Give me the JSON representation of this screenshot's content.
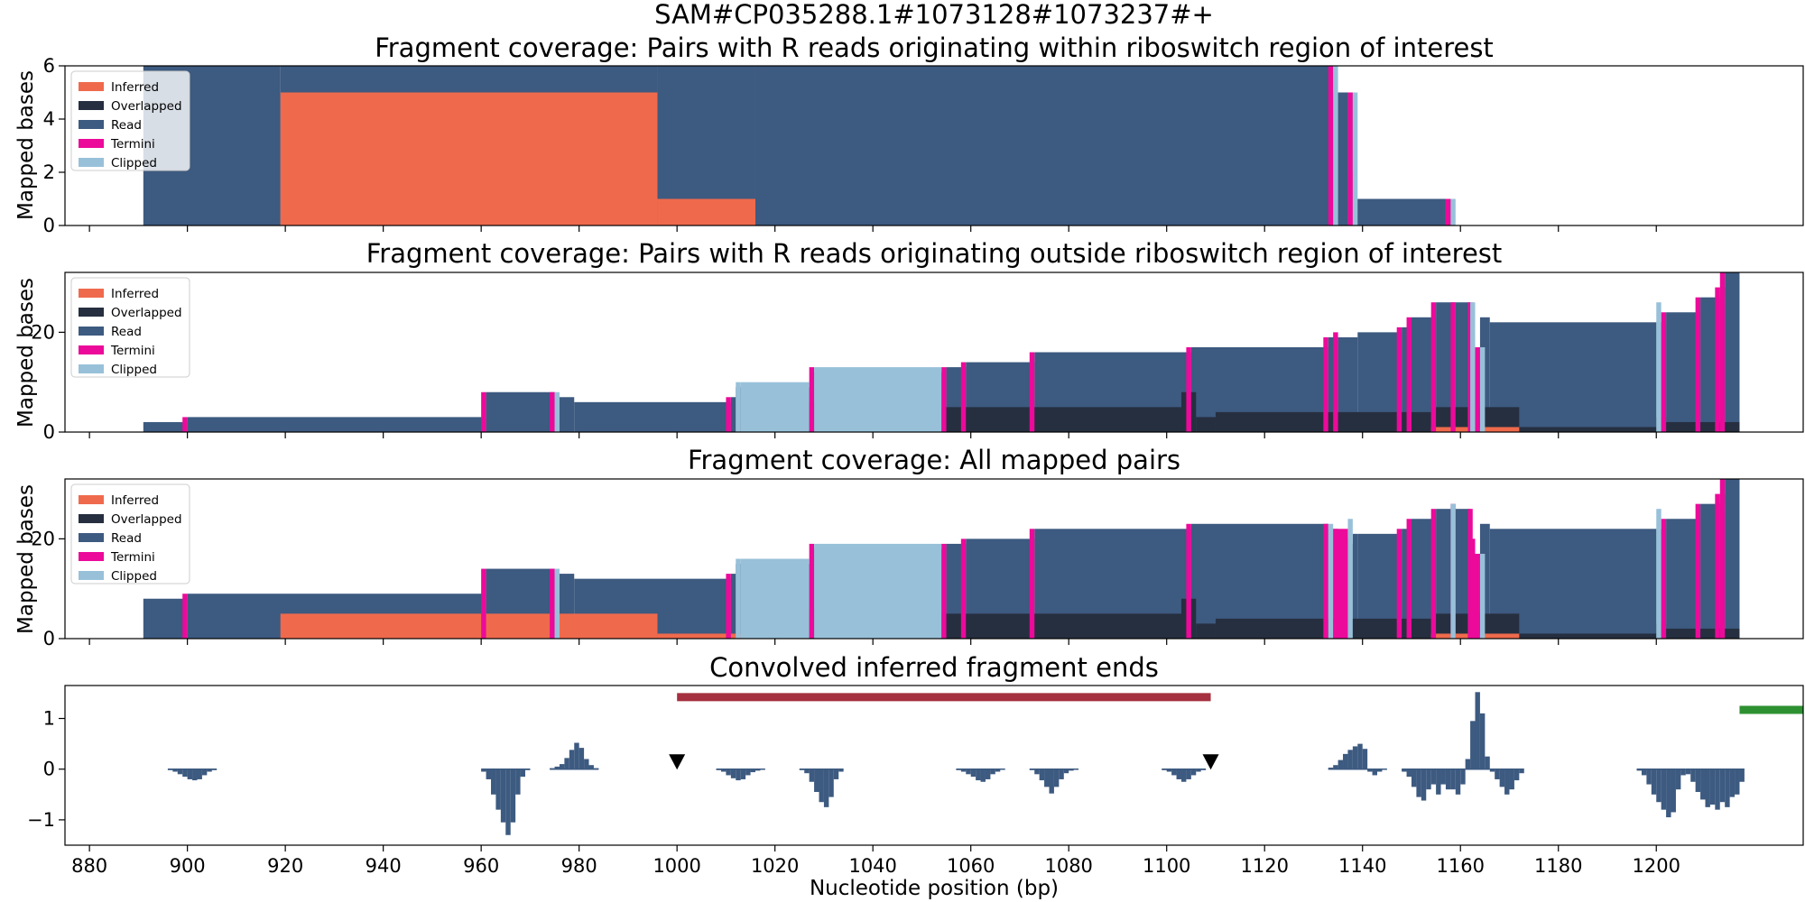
{
  "suptitle": "SAM#CP035288.1#1073128#1073237#+",
  "colors": {
    "Inferred": "#ef6a4c",
    "Overlapped": "#262f40",
    "Read": "#3d5a80",
    "Termini": "#ec0a9a",
    "Clipped": "#98c1d9",
    "bar_neg": "#3d5a80",
    "riboswitch": "#a5303f",
    "downstream": "#2e9131",
    "marker": "#000000"
  },
  "legend_labels": [
    "Inferred",
    "Overlapped",
    "Read",
    "Termini",
    "Clipped"
  ],
  "chart_data": [
    {
      "type": "area",
      "title": "Fragment coverage: Pairs with R reads originating within riboswitch region of interest",
      "ylabel": "Mapped bases",
      "xlim": [
        875,
        1230
      ],
      "ylim": [
        0,
        6
      ],
      "yticks": [
        0,
        2,
        4,
        6
      ],
      "legend": "top-left",
      "layers": {
        "Inferred": [
          [
            919,
            996,
            5
          ],
          [
            996,
            1016,
            1
          ]
        ],
        "Overlapped": [],
        "Read": [
          [
            891,
            919,
            6
          ],
          [
            919,
            996,
            6
          ],
          [
            996,
            1016,
            6
          ],
          [
            1016,
            1134,
            6
          ],
          [
            1134,
            1137,
            5
          ],
          [
            1137,
            1138,
            5
          ],
          [
            1138,
            1138.6,
            2
          ],
          [
            1138.6,
            1157,
            1
          ],
          [
            1157,
            1158,
            1
          ]
        ],
        "Termini": [
          [
            1133,
            1134,
            6
          ],
          [
            1137,
            1138,
            5
          ],
          [
            1137.6,
            1138.6,
            2
          ],
          [
            1157,
            1158,
            1
          ]
        ],
        "Clipped": [
          [
            1134,
            1135,
            6
          ],
          [
            1138,
            1139,
            5
          ],
          [
            1158,
            1159,
            1
          ]
        ]
      }
    },
    {
      "type": "area",
      "title": "Fragment coverage: Pairs with R reads originating outside riboswitch region of interest",
      "ylabel": "Mapped bases",
      "xlim": [
        875,
        1230
      ],
      "ylim": [
        0,
        32
      ],
      "yticks": [
        0,
        20
      ],
      "legend": "top-left",
      "layers": {
        "Inferred": [
          [
            1154,
            1172,
            1
          ]
        ],
        "Overlapped": [
          [
            1022,
            1042,
            6
          ],
          [
            1042,
            1103,
            5
          ],
          [
            1103,
            1106,
            8
          ],
          [
            1106,
            1110,
            3
          ],
          [
            1110,
            1154,
            4
          ],
          [
            1154,
            1172,
            5
          ],
          [
            1172,
            1200,
            1
          ],
          [
            1200,
            1202,
            3
          ],
          [
            1202,
            1217,
            2
          ]
        ],
        "Read": [
          [
            891,
            900,
            2
          ],
          [
            900,
            961,
            3
          ],
          [
            961,
            975,
            8
          ],
          [
            975,
            979,
            7
          ],
          [
            979,
            1011,
            6
          ],
          [
            1011,
            1012,
            7
          ],
          [
            1012,
            1028,
            9
          ],
          [
            1028,
            1055,
            12
          ],
          [
            1055,
            1059,
            13
          ],
          [
            1059,
            1073,
            14
          ],
          [
            1073,
            1105,
            16
          ],
          [
            1105,
            1133,
            17
          ],
          [
            1133,
            1135,
            19
          ],
          [
            1135,
            1139,
            19
          ],
          [
            1139,
            1148,
            20
          ],
          [
            1148,
            1150,
            21
          ],
          [
            1150,
            1155,
            23
          ],
          [
            1155,
            1159,
            26
          ],
          [
            1159,
            1162,
            26
          ],
          [
            1162,
            1163,
            20
          ],
          [
            1163,
            1164,
            17
          ],
          [
            1164,
            1166,
            23
          ],
          [
            1166,
            1200,
            22
          ],
          [
            1200,
            1202,
            22
          ],
          [
            1202,
            1209,
            24
          ],
          [
            1209,
            1213,
            27
          ],
          [
            1213,
            1214,
            29
          ],
          [
            1214,
            1217,
            32
          ]
        ],
        "Termini": [
          [
            899,
            900,
            3
          ],
          [
            960,
            961,
            8
          ],
          [
            974,
            975,
            8
          ],
          [
            1010,
            1011,
            7
          ],
          [
            1027,
            1028,
            13
          ],
          [
            1054,
            1055,
            13
          ],
          [
            1058,
            1059,
            14
          ],
          [
            1072,
            1073,
            16
          ],
          [
            1104,
            1105,
            17
          ],
          [
            1132,
            1133,
            19
          ],
          [
            1134,
            1135,
            20
          ],
          [
            1147,
            1148,
            21
          ],
          [
            1149,
            1150,
            23
          ],
          [
            1154,
            1155,
            26
          ],
          [
            1158,
            1159,
            26
          ],
          [
            1161.5,
            1162.5,
            26
          ],
          [
            1162,
            1163,
            20
          ],
          [
            1163,
            1164,
            17
          ],
          [
            1201,
            1202,
            24
          ],
          [
            1208,
            1209,
            27
          ],
          [
            1212,
            1213,
            29
          ],
          [
            1213,
            1214,
            32
          ]
        ],
        "Clipped": [
          [
            975,
            976,
            8
          ],
          [
            1012,
            1013,
            10
          ],
          [
            1013,
            1027,
            10
          ],
          [
            1028,
            1054,
            13
          ],
          [
            1162,
            1163,
            26
          ],
          [
            1164,
            1165,
            17
          ],
          [
            1200,
            1201,
            26
          ]
        ]
      }
    },
    {
      "type": "area",
      "title": "Fragment coverage: All mapped pairs",
      "ylabel": "Mapped bases",
      "xlim": [
        875,
        1230
      ],
      "ylim": [
        0,
        32
      ],
      "yticks": [
        0,
        20
      ],
      "legend": "top-left",
      "layers": {
        "Inferred": [
          [
            919,
            996,
            5
          ],
          [
            996,
            1016,
            1
          ],
          [
            1154,
            1172,
            1
          ]
        ],
        "Overlapped": [
          [
            1022,
            1042,
            6
          ],
          [
            1042,
            1103,
            5
          ],
          [
            1103,
            1106,
            8
          ],
          [
            1106,
            1110,
            3
          ],
          [
            1110,
            1154,
            4
          ],
          [
            1154,
            1172,
            5
          ],
          [
            1172,
            1200,
            1
          ],
          [
            1200,
            1202,
            3
          ],
          [
            1202,
            1217,
            2
          ]
        ],
        "Read": [
          [
            891,
            900,
            8
          ],
          [
            900,
            961,
            9
          ],
          [
            961,
            975,
            14
          ],
          [
            975,
            979,
            13
          ],
          [
            979,
            1011,
            12
          ],
          [
            1011,
            1012,
            13
          ],
          [
            1012,
            1028,
            15
          ],
          [
            1028,
            1055,
            18
          ],
          [
            1055,
            1059,
            19
          ],
          [
            1059,
            1073,
            20
          ],
          [
            1073,
            1105,
            22
          ],
          [
            1105,
            1133,
            23
          ],
          [
            1133,
            1135,
            22
          ],
          [
            1135,
            1137,
            20
          ],
          [
            1137,
            1138,
            19
          ],
          [
            1138,
            1139,
            21
          ],
          [
            1139,
            1148,
            21
          ],
          [
            1148,
            1150,
            22
          ],
          [
            1150,
            1155,
            24
          ],
          [
            1155,
            1159,
            26
          ],
          [
            1159,
            1162,
            26
          ],
          [
            1162,
            1163,
            20
          ],
          [
            1163,
            1164,
            17
          ],
          [
            1164,
            1166,
            23
          ],
          [
            1166,
            1200,
            22
          ],
          [
            1200,
            1202,
            22
          ],
          [
            1202,
            1209,
            24
          ],
          [
            1209,
            1213,
            27
          ],
          [
            1213,
            1214,
            29
          ],
          [
            1214,
            1217,
            32
          ]
        ],
        "Termini": [
          [
            899,
            900,
            9
          ],
          [
            960,
            961,
            14
          ],
          [
            974,
            975,
            14
          ],
          [
            1010,
            1011,
            13
          ],
          [
            1027,
            1028,
            19
          ],
          [
            1054,
            1055,
            19
          ],
          [
            1058,
            1059,
            20
          ],
          [
            1072,
            1073,
            22
          ],
          [
            1104,
            1105,
            23
          ],
          [
            1132,
            1133,
            23
          ],
          [
            1134,
            1137,
            22
          ],
          [
            1136,
            1137,
            20
          ],
          [
            1147,
            1148,
            22
          ],
          [
            1149,
            1150,
            24
          ],
          [
            1154,
            1155,
            26
          ],
          [
            1158,
            1159,
            27
          ],
          [
            1161.5,
            1162.5,
            26
          ],
          [
            1162,
            1163,
            20
          ],
          [
            1163,
            1164,
            17
          ],
          [
            1201,
            1202,
            24
          ],
          [
            1208,
            1209,
            27
          ],
          [
            1212,
            1213,
            29
          ],
          [
            1213,
            1214,
            32
          ]
        ],
        "Clipped": [
          [
            975,
            976,
            14
          ],
          [
            1012,
            1013,
            16
          ],
          [
            1013,
            1027,
            16
          ],
          [
            1028,
            1054,
            19
          ],
          [
            1133,
            1134,
            23
          ],
          [
            1137,
            1138,
            24
          ],
          [
            1158,
            1159,
            27
          ],
          [
            1164,
            1165,
            17
          ],
          [
            1200,
            1201,
            26
          ]
        ]
      }
    },
    {
      "type": "bar",
      "title": "Convolved inferred fragment ends",
      "xlabel": "Nucleotide position (bp)",
      "xlim": [
        875,
        1230
      ],
      "ylim": [
        -1.5,
        1.65
      ],
      "yticks": [
        -1,
        0,
        1
      ],
      "xticks": [
        880,
        900,
        920,
        940,
        960,
        980,
        1000,
        1020,
        1040,
        1060,
        1080,
        1100,
        1120,
        1140,
        1160,
        1180,
        1200
      ],
      "bars": [
        {
          "start": 896,
          "values": [
            -0.02,
            -0.05,
            -0.1,
            -0.15,
            -0.2,
            -0.22,
            -0.2,
            -0.12,
            -0.05,
            -0.02
          ]
        },
        {
          "start": 960,
          "values": [
            -0.05,
            -0.2,
            -0.5,
            -0.8,
            -1.05,
            -1.3,
            -1.05,
            -0.5,
            -0.15,
            -0.02
          ]
        },
        {
          "start": 974,
          "values": [
            0.02,
            0.05,
            0.1,
            0.22,
            0.38,
            0.52,
            0.42,
            0.2,
            0.08,
            0.02
          ]
        },
        {
          "start": 1008,
          "values": [
            -0.02,
            -0.05,
            -0.12,
            -0.18,
            -0.22,
            -0.2,
            -0.12,
            -0.06,
            -0.03,
            -0.01
          ]
        },
        {
          "start": 1025,
          "values": [
            -0.02,
            -0.08,
            -0.25,
            -0.45,
            -0.65,
            -0.75,
            -0.55,
            -0.2,
            -0.05
          ]
        },
        {
          "start": 1057,
          "values": [
            -0.02,
            -0.05,
            -0.1,
            -0.15,
            -0.22,
            -0.25,
            -0.2,
            -0.1,
            -0.05,
            -0.01
          ]
        },
        {
          "start": 1072,
          "values": [
            -0.02,
            -0.1,
            -0.22,
            -0.35,
            -0.48,
            -0.35,
            -0.2,
            -0.08,
            -0.03,
            -0.01
          ]
        },
        {
          "start": 1099,
          "values": [
            -0.02,
            -0.05,
            -0.12,
            -0.2,
            -0.25,
            -0.2,
            -0.12,
            -0.05,
            -0.02
          ]
        },
        {
          "start": 1133,
          "values": [
            0.03,
            0.08,
            0.18,
            0.3,
            0.38,
            0.45,
            0.5,
            0.4,
            -0.05,
            -0.12,
            -0.05,
            -0.01
          ]
        },
        {
          "start": 1148,
          "values": [
            -0.05,
            -0.15,
            -0.35,
            -0.55,
            -0.62,
            -0.4,
            -0.3,
            -0.5,
            -0.3,
            -0.4,
            -0.4,
            -0.5,
            -0.3
          ]
        },
        {
          "start": 1161,
          "values": [
            0.2,
            0.95,
            1.52,
            1.1,
            0.25
          ]
        },
        {
          "start": 1166,
          "values": [
            -0.05,
            -0.2,
            -0.35,
            -0.5,
            -0.4,
            -0.22,
            -0.08
          ]
        },
        {
          "start": 1196,
          "values": [
            -0.03,
            -0.12,
            -0.3,
            -0.5,
            -0.65,
            -0.8,
            -0.95,
            -0.85,
            -0.4,
            -0.12
          ]
        },
        {
          "start": 1206,
          "values": [
            -0.1,
            -0.25,
            -0.45,
            -0.6,
            -0.75,
            -0.7,
            -0.8,
            -0.65,
            -0.75,
            -0.55,
            -0.5,
            -0.25
          ]
        }
      ],
      "markers": [
        {
          "x": 1000,
          "y": 0.15
        },
        {
          "x": 1109,
          "y": 0.15
        }
      ],
      "ranges": [
        {
          "name": "riboswitch",
          "x0": 1000,
          "x1": 1109,
          "y": 1.42
        },
        {
          "name": "downstream",
          "x0": 1217,
          "x1": 1235,
          "y": 1.17
        }
      ]
    }
  ]
}
